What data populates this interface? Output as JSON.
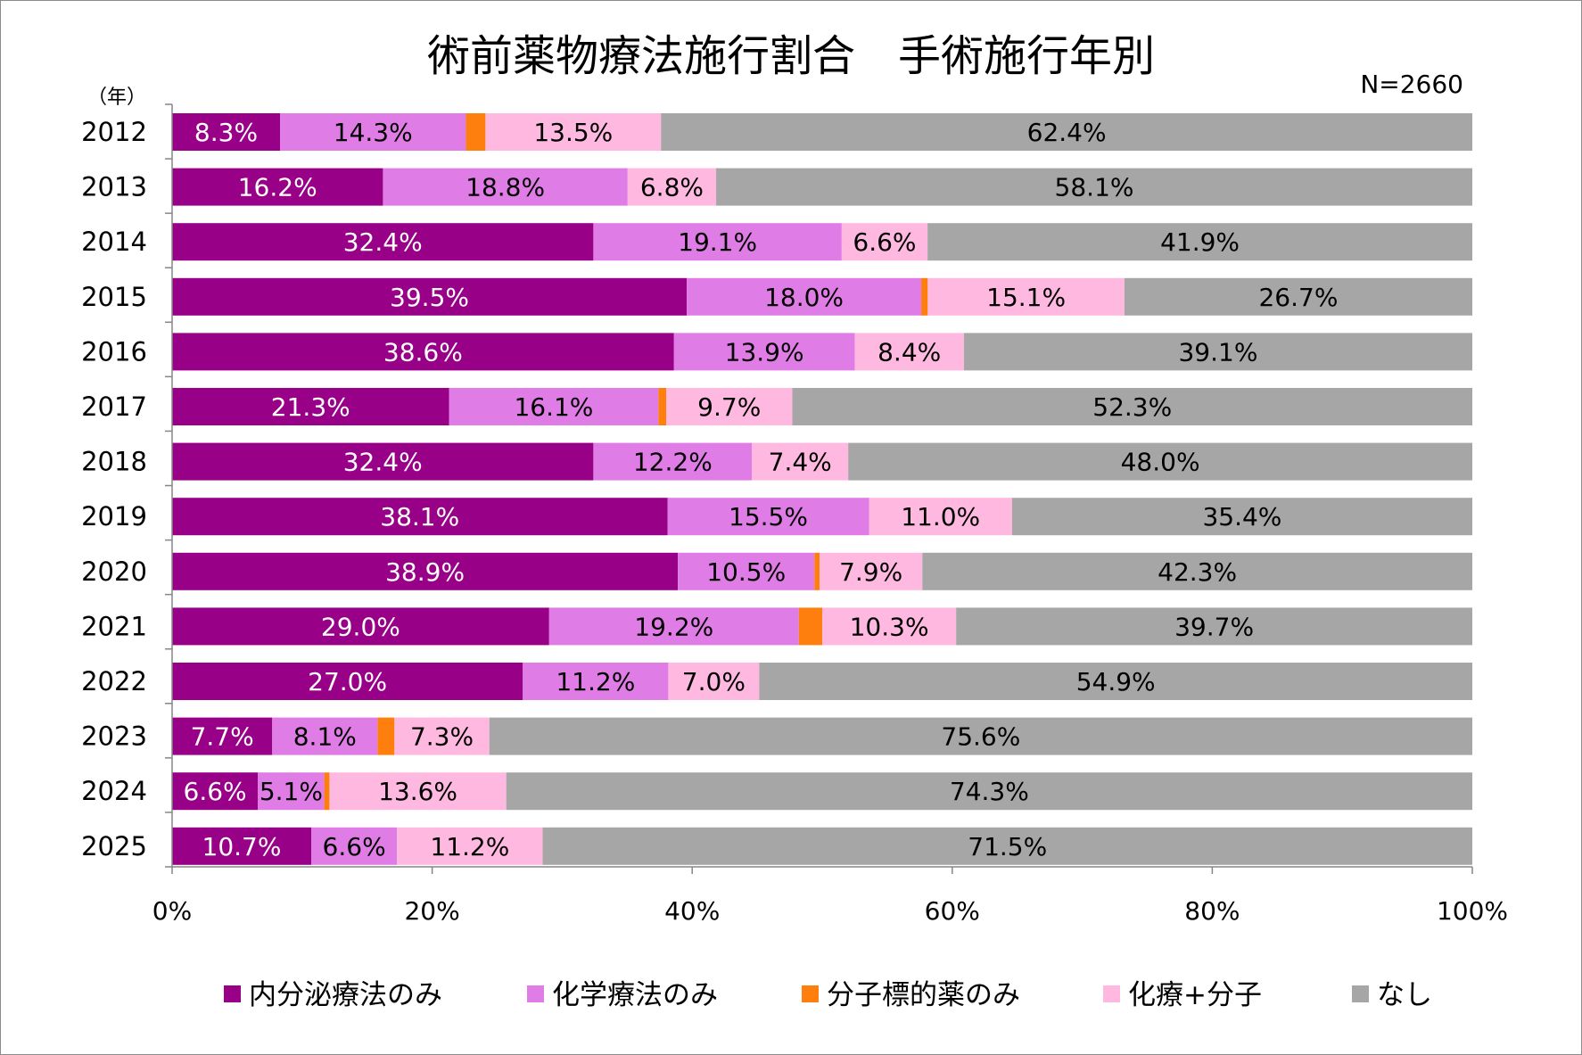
{
  "chart_data": {
    "type": "bar",
    "orientation": "horizontal",
    "stacked": "percent",
    "title": "術前薬物療法施行割合　手術施行年別",
    "note": "N=2660",
    "category_unit": "（年）",
    "categories": [
      "2012",
      "2013",
      "2014",
      "2015",
      "2016",
      "2017",
      "2018",
      "2019",
      "2020",
      "2021",
      "2022",
      "2023",
      "2024",
      "2025"
    ],
    "xlim": [
      0,
      100
    ],
    "xticks": [
      "0%",
      "20%",
      "40%",
      "60%",
      "80%",
      "100%"
    ],
    "grid": false,
    "legend_position": "bottom",
    "series": [
      {
        "name": "内分泌療法のみ",
        "color": "#990088",
        "label_color": "#ffffff",
        "values": [
          8.3,
          16.2,
          32.4,
          39.5,
          38.6,
          21.3,
          32.4,
          38.1,
          38.9,
          29.0,
          27.0,
          7.7,
          6.6,
          10.7
        ],
        "labels": [
          "8.3%",
          "16.2%",
          "32.4%",
          "39.5%",
          "38.6%",
          "21.3%",
          "32.4%",
          "38.1%",
          "38.9%",
          "29.0%",
          "27.0%",
          "7.7%",
          "6.6%",
          "10.7%"
        ]
      },
      {
        "name": "化学療法のみ",
        "color": "#e07ce6",
        "label_color": "#000000",
        "values": [
          14.3,
          18.8,
          19.1,
          18.0,
          13.9,
          16.1,
          12.2,
          15.5,
          10.5,
          19.2,
          11.2,
          8.1,
          5.1,
          6.6
        ],
        "labels": [
          "14.3%",
          "18.8%",
          "19.1%",
          "18.0%",
          "13.9%",
          "16.1%",
          "12.2%",
          "15.5%",
          "10.5%",
          "19.2%",
          "11.2%",
          "8.1%",
          "5.1%",
          "6.6%"
        ]
      },
      {
        "name": "分子標的薬のみ",
        "color": "#ff7f0e",
        "label_color": "#000000",
        "values": [
          1.5,
          0,
          0,
          0.5,
          0,
          0.6,
          0,
          0,
          0.4,
          1.8,
          0,
          1.3,
          0.4,
          0
        ],
        "labels": [
          "",
          "",
          "",
          "",
          "",
          "",
          "",
          "",
          "",
          "",
          "",
          "",
          "",
          ""
        ]
      },
      {
        "name": "化療+分子",
        "color": "#ffb8e0",
        "label_color": "#000000",
        "values": [
          13.5,
          6.8,
          6.6,
          15.1,
          8.4,
          9.7,
          7.4,
          11.0,
          7.9,
          10.3,
          7.0,
          7.3,
          13.6,
          11.2
        ],
        "labels": [
          "13.5%",
          "6.8%",
          "6.6%",
          "15.1%",
          "8.4%",
          "9.7%",
          "7.4%",
          "11.0%",
          "7.9%",
          "10.3%",
          "7.0%",
          "7.3%",
          "13.6%",
          "11.2%"
        ]
      },
      {
        "name": "なし",
        "color": "#a6a6a6",
        "label_color": "#000000",
        "values": [
          62.4,
          58.1,
          41.9,
          26.7,
          39.1,
          52.3,
          48.0,
          35.4,
          42.3,
          39.7,
          54.9,
          75.6,
          74.3,
          71.5
        ],
        "labels": [
          "62.4%",
          "58.1%",
          "41.9%",
          "26.7%",
          "39.1%",
          "52.3%",
          "48.0%",
          "35.4%",
          "42.3%",
          "39.7%",
          "54.9%",
          "75.6%",
          "74.3%",
          "71.5%"
        ]
      }
    ]
  }
}
